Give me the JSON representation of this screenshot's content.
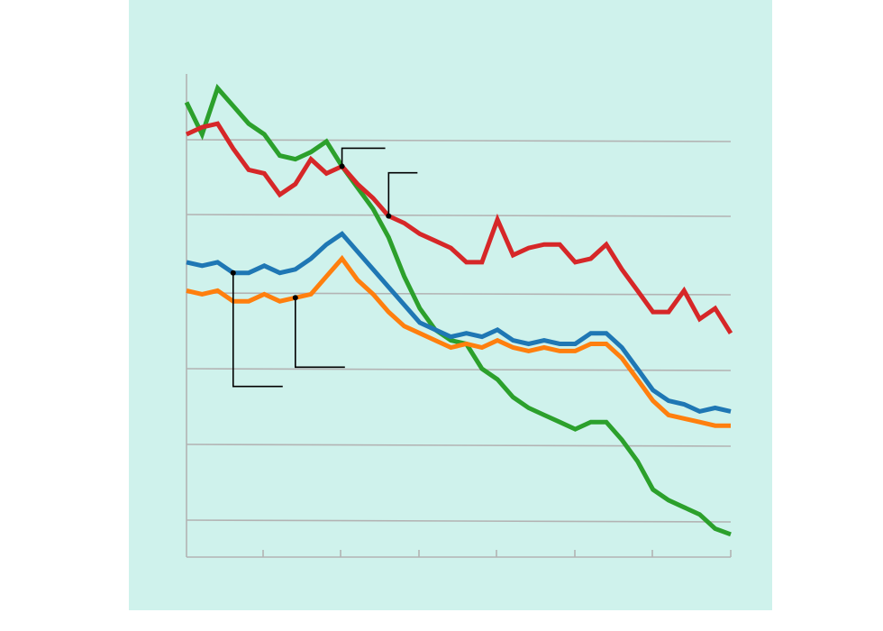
{
  "chart_data": {
    "type": "line",
    "title": "",
    "xlabel": "",
    "ylabel": "",
    "x": [
      0,
      1,
      2,
      3,
      4,
      5,
      6,
      7,
      8,
      9,
      10,
      11,
      12,
      13,
      14,
      15,
      16,
      17,
      18,
      19,
      20,
      21,
      22,
      23,
      24,
      25,
      26,
      27,
      28,
      29,
      30,
      31,
      32,
      33,
      34,
      35
    ],
    "xlim": [
      0,
      35
    ],
    "ylim": [
      -0.5,
      6.3
    ],
    "grid": "horizontal",
    "legend": "none",
    "series": [
      {
        "color": "#2ca02c",
        "values": [
          5.9,
          5.45,
          6.1,
          5.85,
          5.6,
          5.45,
          5.15,
          5.1,
          5.2,
          5.35,
          5.0,
          4.7,
          4.4,
          4.0,
          3.45,
          3.0,
          2.7,
          2.55,
          2.5,
          2.15,
          2.0,
          1.75,
          1.6,
          1.5,
          1.4,
          1.3,
          1.4,
          1.4,
          1.15,
          0.85,
          0.45,
          0.3,
          0.2,
          0.1,
          -0.1,
          -0.18
        ]
      },
      {
        "color": "#d62728",
        "values": [
          5.45,
          5.55,
          5.6,
          5.25,
          4.95,
          4.9,
          4.6,
          4.75,
          5.1,
          4.9,
          5.0,
          4.75,
          4.55,
          4.3,
          4.2,
          4.05,
          3.95,
          3.85,
          3.65,
          3.65,
          4.25,
          3.75,
          3.85,
          3.9,
          3.9,
          3.65,
          3.7,
          3.9,
          3.55,
          3.25,
          2.95,
          2.95,
          3.25,
          2.85,
          3.0,
          2.65
        ]
      },
      {
        "color": "#1f77b4",
        "values": [
          3.65,
          3.6,
          3.65,
          3.5,
          3.5,
          3.6,
          3.5,
          3.55,
          3.7,
          3.9,
          4.05,
          3.8,
          3.55,
          3.3,
          3.05,
          2.8,
          2.7,
          2.6,
          2.65,
          2.6,
          2.7,
          2.55,
          2.5,
          2.55,
          2.5,
          2.5,
          2.65,
          2.65,
          2.45,
          2.15,
          1.85,
          1.7,
          1.65,
          1.55,
          1.6,
          1.55
        ]
      },
      {
        "color": "#ff7f0e",
        "values": [
          3.25,
          3.2,
          3.25,
          3.1,
          3.1,
          3.2,
          3.1,
          3.15,
          3.2,
          3.45,
          3.7,
          3.4,
          3.2,
          2.95,
          2.75,
          2.65,
          2.55,
          2.45,
          2.5,
          2.45,
          2.55,
          2.45,
          2.4,
          2.45,
          2.4,
          2.4,
          2.5,
          2.5,
          2.3,
          2.0,
          1.7,
          1.5,
          1.45,
          1.4,
          1.35,
          1.35
        ]
      }
    ],
    "annotations": [
      {
        "series": 0,
        "x": 10,
        "label": ""
      },
      {
        "series": 1,
        "x": 13,
        "label": ""
      },
      {
        "series": 2,
        "x": 3,
        "label": ""
      },
      {
        "series": 3,
        "x": 7,
        "label": ""
      }
    ]
  }
}
